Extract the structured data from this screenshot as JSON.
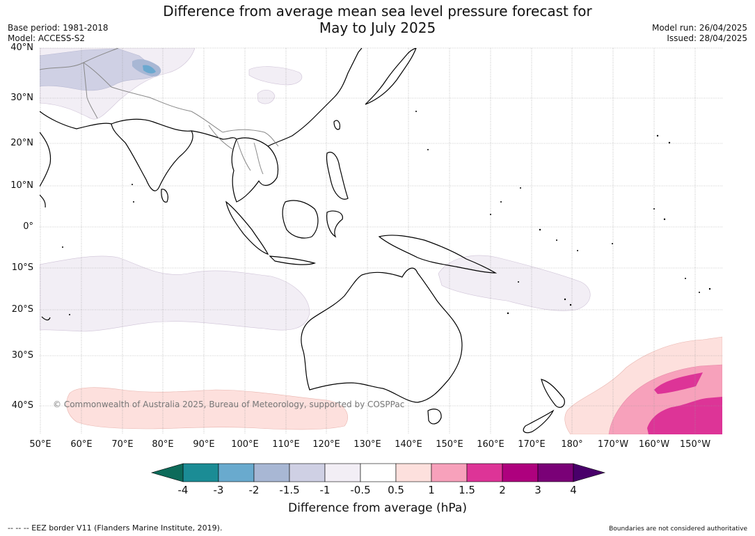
{
  "header": {
    "title_line1": "Difference from average mean sea level pressure forecast for",
    "title_line2": "May to July 2025",
    "base_period": "Base period: 1981-2018",
    "model": "Model: ACCESS-S2",
    "model_run": "Model run: 26/04/2025",
    "issued": "Issued: 28/04/2025"
  },
  "map": {
    "lat_labels": [
      "40°N",
      "30°N",
      "20°N",
      "10°N",
      "0°",
      "10°S",
      "20°S",
      "30°S",
      "40°S"
    ],
    "lon_labels": [
      "50°E",
      "60°E",
      "70°E",
      "80°E",
      "90°E",
      "100°E",
      "110°E",
      "120°E",
      "130°E",
      "140°E",
      "150°E",
      "160°E",
      "170°E",
      "180°",
      "170°W",
      "160°W",
      "150°W"
    ],
    "copyright": "© Commonwealth of Australia 2025, Bureau of Meteorology, supported by COSPPac",
    "anomaly_fills": {
      "light_negative": "#f2eef5",
      "mid_negative": "#cfd0e4",
      "negative": "#a8b7d4",
      "strong_negative": "#6aa8cf",
      "light_positive": "#fde0dd",
      "positive": "#f7a1bb",
      "strong_positive": "#dd3497"
    },
    "land_outline_color": "#000000",
    "border_color": "#888888",
    "grid": true
  },
  "colorbar": {
    "title": "Difference from average (hPa)",
    "ticks": [
      "-4",
      "-3",
      "-2",
      "-1.5",
      "-1",
      "-0.5",
      "0.5",
      "1",
      "1.5",
      "2",
      "3",
      "4"
    ],
    "colors": [
      "#1b8c95",
      "#69aace",
      "#a8b7d4",
      "#cfd0e4",
      "#f2eef5",
      "#ffffff",
      "#fde0dd",
      "#f7a1bb",
      "#dd3497",
      "#ae017e",
      "#7a0177"
    ],
    "extend_low_color": "#0d6b5a",
    "extend_high_color": "#49006a"
  },
  "footer": {
    "legend_left": "--  --  -- EEZ border V11 (Flanders Marine Institute, 2019).",
    "note_right": "Boundaries are not considered authoritative"
  }
}
